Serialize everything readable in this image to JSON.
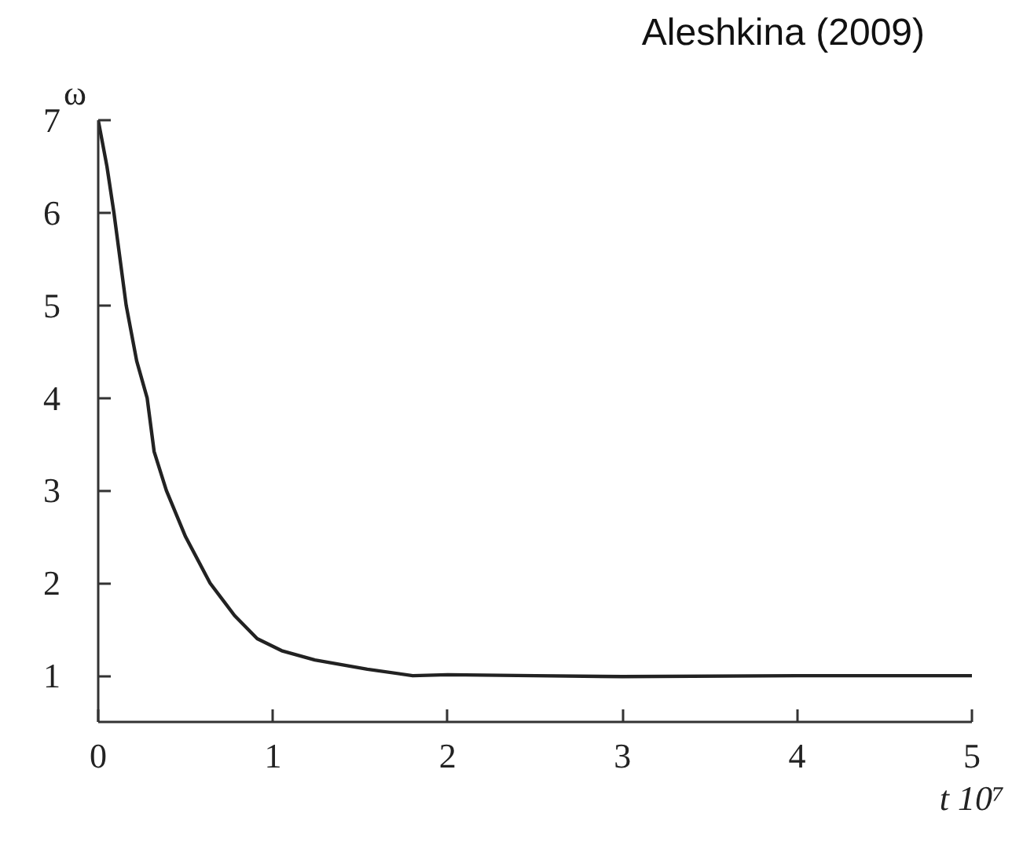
{
  "chart_data": {
    "type": "line",
    "title": "Aleshkina (2009)",
    "xlabel": "t 10⁷",
    "ylabel": "ω",
    "x": [
      0,
      0.05,
      0.09,
      0.16,
      0.22,
      0.28,
      0.32,
      0.39,
      0.5,
      0.64,
      0.78,
      0.91,
      1.05,
      1.24,
      1.54,
      1.8,
      2.0,
      2.5,
      3,
      4,
      5
    ],
    "values": [
      7,
      6.5,
      6,
      5,
      4.4,
      4,
      3.42,
      3,
      2.5,
      2,
      1.65,
      1.4,
      1.27,
      1.17,
      1.07,
      1.0,
      1.01,
      1.0,
      0.99,
      1.0,
      1.0
    ],
    "color": "#222222",
    "xlim": [
      0,
      5
    ],
    "ylim": [
      0.5,
      7
    ],
    "xticks": [
      0,
      1,
      2,
      3,
      4,
      5
    ],
    "yticks": [
      1,
      2,
      3,
      4,
      5,
      6,
      7
    ],
    "grid": false,
    "legend": false,
    "marker": "none",
    "line_style": "solid"
  }
}
